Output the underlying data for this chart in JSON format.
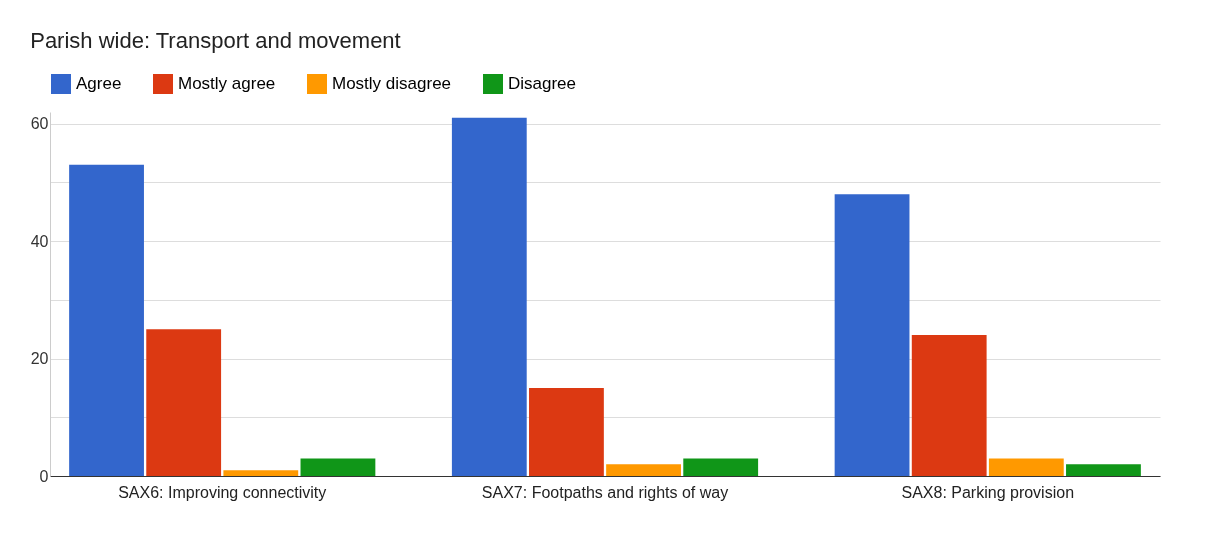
{
  "chart_data": {
    "type": "bar",
    "title": "Parish wide: Transport and movement",
    "categories": [
      "SAX6: Improving connectivity",
      "SAX7: Footpaths and rights of way",
      "SAX8: Parking provision"
    ],
    "series": [
      {
        "name": "Agree",
        "color": "#3366cc",
        "values": [
          53,
          61,
          48
        ]
      },
      {
        "name": "Mostly agree",
        "color": "#dc3912",
        "values": [
          25,
          15,
          24
        ]
      },
      {
        "name": "Mostly disagree",
        "color": "#ff9900",
        "values": [
          1,
          2,
          3
        ]
      },
      {
        "name": "Disagree",
        "color": "#109618",
        "values": [
          3,
          3,
          2
        ]
      }
    ],
    "ylim": [
      0,
      62
    ],
    "yticks": [
      0,
      {
        "value": 10,
        "label": null
      },
      20,
      {
        "value": 30,
        "label": null
      },
      40,
      {
        "value": 50,
        "label": null
      },
      60
    ],
    "grid": "y",
    "legend": "top left"
  }
}
